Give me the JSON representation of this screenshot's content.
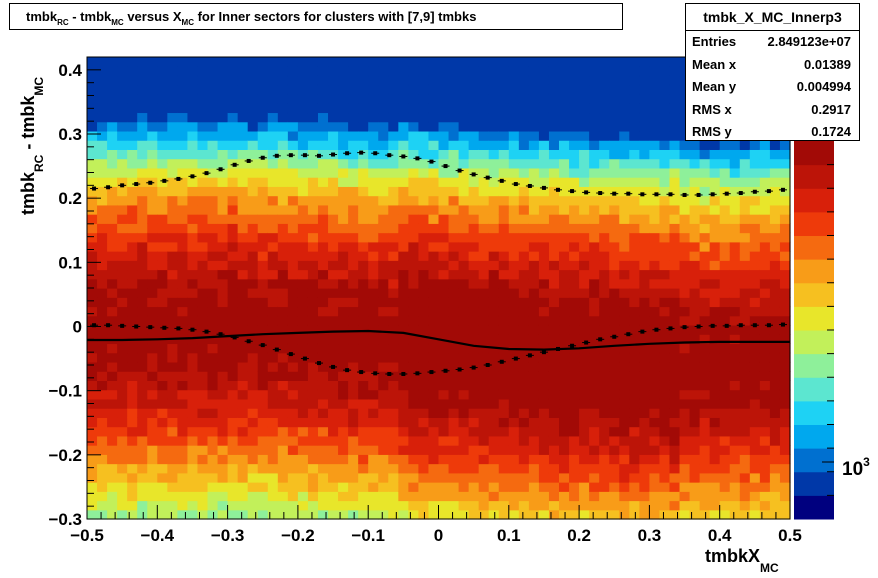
{
  "title_parts": {
    "p1": "tmbk",
    "s1": "RC",
    "p2": " - tmbk",
    "s2": "MC",
    "p3": " versus X",
    "s3": "MC",
    "p4": " for Inner sectors for clusters with [7,9] tmbks"
  },
  "stats": {
    "name": "tmbk_X_MC_Innerp3",
    "rows": [
      {
        "label": "Entries",
        "value": "2.849123e+07"
      },
      {
        "label": "Mean x",
        "value": "0.01389"
      },
      {
        "label": "Mean y",
        "value": "0.004994"
      },
      {
        "label": "RMS x",
        "value": "0.2917"
      },
      {
        "label": "RMS y",
        "value": "0.1724"
      }
    ]
  },
  "colorbar": {
    "label_base": "10",
    "label_exp": "3"
  },
  "chart_data": {
    "type": "heatmap",
    "xlabel": {
      "main": "tmbkX",
      "sub": "MC"
    },
    "ylabel": {
      "p1": "tmbk",
      "s1": "RC",
      "p2": " - tmbk",
      "s2": "MC"
    },
    "xlim": [
      -0.5,
      0.5
    ],
    "ylim": [
      -0.3,
      0.42
    ],
    "x_ticks": [
      -0.5,
      -0.4,
      -0.3,
      -0.2,
      -0.1,
      0,
      0.1,
      0.2,
      0.3,
      0.4,
      0.5
    ],
    "x_tick_labels": [
      "−0.5",
      "−0.4",
      "−0.3",
      "−0.2",
      "−0.1",
      "0",
      "0.1",
      "0.2",
      "0.3",
      "0.4",
      "0.5"
    ],
    "y_ticks": [
      -0.3,
      -0.2,
      -0.1,
      0,
      0.1,
      0.2,
      0.3,
      0.4
    ],
    "y_tick_labels": [
      "−0.3",
      "−0.2",
      "−0.1",
      "0",
      "0.1",
      "0.2",
      "0.3",
      "0.4"
    ],
    "palette": [
      "#00007f",
      "#0038a8",
      "#0070d0",
      "#00a8ee",
      "#1ed2f4",
      "#5ce6d0",
      "#8ef09a",
      "#c2f05a",
      "#e8e62a",
      "#f6c020",
      "#f89c18",
      "#f56a10",
      "#ee3a0a",
      "#d8200a",
      "#bc1408",
      "#a20a06"
    ],
    "upper_profile": {
      "x": [
        -0.49,
        -0.47,
        -0.45,
        -0.43,
        -0.41,
        -0.39,
        -0.37,
        -0.35,
        -0.33,
        -0.31,
        -0.29,
        -0.27,
        -0.25,
        -0.23,
        -0.21,
        -0.19,
        -0.17,
        -0.15,
        -0.13,
        -0.11,
        -0.09,
        -0.07,
        -0.05,
        -0.03,
        -0.01,
        0.01,
        0.03,
        0.05,
        0.07,
        0.09,
        0.11,
        0.13,
        0.15,
        0.17,
        0.19,
        0.21,
        0.23,
        0.25,
        0.27,
        0.29,
        0.31,
        0.33,
        0.35,
        0.37,
        0.39,
        0.41,
        0.43,
        0.45,
        0.47,
        0.49
      ],
      "y": [
        0.215,
        0.217,
        0.22,
        0.222,
        0.224,
        0.227,
        0.23,
        0.234,
        0.239,
        0.245,
        0.252,
        0.258,
        0.263,
        0.266,
        0.267,
        0.267,
        0.266,
        0.268,
        0.27,
        0.271,
        0.27,
        0.267,
        0.265,
        0.262,
        0.257,
        0.25,
        0.243,
        0.237,
        0.232,
        0.227,
        0.222,
        0.219,
        0.216,
        0.213,
        0.211,
        0.209,
        0.208,
        0.207,
        0.207,
        0.206,
        0.206,
        0.206,
        0.205,
        0.205,
        0.206,
        0.207,
        0.208,
        0.21,
        0.211,
        0.213
      ]
    },
    "lower_profile": {
      "x": [
        -0.49,
        -0.47,
        -0.45,
        -0.43,
        -0.41,
        -0.39,
        -0.37,
        -0.35,
        -0.33,
        -0.31,
        -0.29,
        -0.27,
        -0.25,
        -0.23,
        -0.21,
        -0.19,
        -0.17,
        -0.15,
        -0.13,
        -0.11,
        -0.09,
        -0.07,
        -0.05,
        -0.03,
        -0.01,
        0.01,
        0.03,
        0.05,
        0.07,
        0.09,
        0.11,
        0.13,
        0.15,
        0.17,
        0.19,
        0.21,
        0.23,
        0.25,
        0.27,
        0.29,
        0.31,
        0.33,
        0.35,
        0.37,
        0.39,
        0.41,
        0.43,
        0.45,
        0.47,
        0.49
      ],
      "y": [
        0.002,
        0.002,
        0.001,
        0.0,
        -0.001,
        -0.002,
        -0.003,
        -0.005,
        -0.008,
        -0.012,
        -0.017,
        -0.023,
        -0.029,
        -0.036,
        -0.043,
        -0.05,
        -0.057,
        -0.063,
        -0.068,
        -0.071,
        -0.073,
        -0.074,
        -0.074,
        -0.073,
        -0.071,
        -0.069,
        -0.067,
        -0.064,
        -0.06,
        -0.055,
        -0.05,
        -0.045,
        -0.04,
        -0.035,
        -0.03,
        -0.025,
        -0.02,
        -0.016,
        -0.012,
        -0.008,
        -0.005,
        -0.003,
        -0.001,
        0.0,
        0.001,
        0.001,
        0.002,
        0.002,
        0.002,
        0.003
      ]
    },
    "mean_curve": {
      "x": [
        -0.5,
        -0.45,
        -0.4,
        -0.35,
        -0.3,
        -0.25,
        -0.2,
        -0.15,
        -0.1,
        -0.05,
        0.0,
        0.05,
        0.1,
        0.15,
        0.2,
        0.25,
        0.3,
        0.35,
        0.4,
        0.45,
        0.5
      ],
      "y": [
        -0.021,
        -0.021,
        -0.02,
        -0.018,
        -0.015,
        -0.012,
        -0.01,
        -0.008,
        -0.007,
        -0.01,
        -0.02,
        -0.03,
        -0.035,
        -0.036,
        -0.034,
        -0.03,
        -0.027,
        -0.025,
        -0.024,
        -0.024,
        -0.024
      ]
    }
  }
}
